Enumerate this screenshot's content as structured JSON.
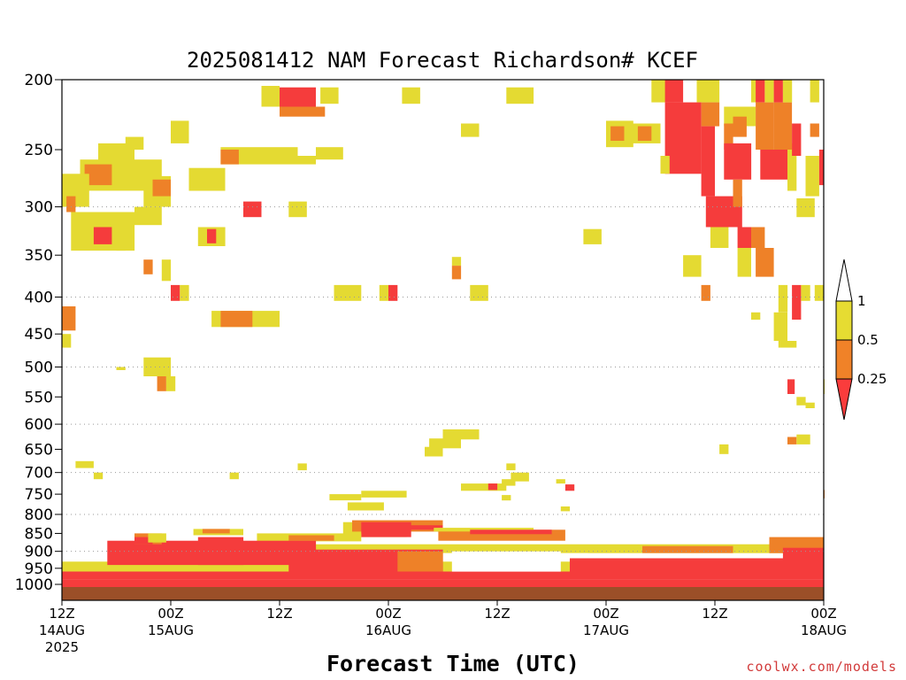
{
  "chart_data": {
    "type": "heatmap",
    "title": "2025081412 NAM Forecast Richardson# KCEF",
    "xlabel": "Forecast Time (UTC)",
    "ylabel": "",
    "y_scale": "log-pressure",
    "ylim": [
      1000,
      200
    ],
    "xlim_hours": [
      0,
      84
    ],
    "y_ticks": [
      200,
      250,
      300,
      350,
      400,
      450,
      500,
      550,
      600,
      650,
      700,
      750,
      800,
      850,
      900,
      950,
      1000
    ],
    "x_ticks": [
      {
        "hour": 0,
        "line1": "12Z",
        "line2": "14AUG",
        "line3": "2025"
      },
      {
        "hour": 12,
        "line1": "00Z",
        "line2": "15AUG",
        "line3": ""
      },
      {
        "hour": 24,
        "line1": "12Z",
        "line2": "",
        "line3": ""
      },
      {
        "hour": 36,
        "line1": "00Z",
        "line2": "16AUG",
        "line3": ""
      },
      {
        "hour": 48,
        "line1": "12Z",
        "line2": "",
        "line3": ""
      },
      {
        "hour": 60,
        "line1": "00Z",
        "line2": "17AUG",
        "line3": ""
      },
      {
        "hour": 72,
        "line1": "12Z",
        "line2": "",
        "line3": ""
      },
      {
        "hour": 84,
        "line1": "00Z",
        "line2": "18AUG",
        "line3": ""
      }
    ],
    "dotted_gridlines_at": [
      300,
      400,
      500,
      600,
      700,
      800,
      900
    ],
    "legend": {
      "placement": "right",
      "levels": [
        {
          "label": "1",
          "color": "#ffffff"
        },
        {
          "label": "0.5",
          "color": "#e6dc32"
        },
        {
          "label": "0.25",
          "color": "#f08228"
        },
        {
          "label": "",
          "color": "#fa3c3c"
        }
      ]
    },
    "categories_colors": {
      "lt_0.25": "#fa3c3c",
      "0.25_0.5": "#f08228",
      "0.5_1": "#e6dc32",
      "ground": "#a0522d"
    },
    "regions": [
      {
        "c": "r",
        "h0": 24.0,
        "h1": 28.0,
        "p0": 205,
        "p1": 218
      },
      {
        "c": "o",
        "h0": 24.0,
        "h1": 29.0,
        "p0": 218,
        "p1": 225
      },
      {
        "c": "y",
        "h0": 22.0,
        "h1": 24.0,
        "p0": 204,
        "p1": 218
      },
      {
        "c": "y",
        "h0": 28.5,
        "h1": 30.5,
        "p0": 205,
        "p1": 216
      },
      {
        "c": "y",
        "h0": 37.5,
        "h1": 39.5,
        "p0": 205,
        "p1": 216
      },
      {
        "c": "y",
        "h0": 49.0,
        "h1": 52.0,
        "p0": 205,
        "p1": 216
      },
      {
        "c": "y",
        "h0": 44.0,
        "h1": 46.0,
        "p0": 230,
        "p1": 240
      },
      {
        "c": "y",
        "h0": 12.0,
        "h1": 14.0,
        "p0": 228,
        "p1": 245
      },
      {
        "c": "y",
        "h0": 4.0,
        "h1": 8.0,
        "p0": 245,
        "p1": 262
      },
      {
        "c": "y",
        "h0": 7.0,
        "h1": 9.0,
        "p0": 240,
        "p1": 250
      },
      {
        "c": "y",
        "h0": 2.0,
        "h1": 11.0,
        "p0": 258,
        "p1": 285
      },
      {
        "c": "o",
        "h0": 2.5,
        "h1": 5.5,
        "p0": 262,
        "p1": 280
      },
      {
        "c": "y",
        "h0": 0.0,
        "h1": 3.0,
        "p0": 270,
        "p1": 300
      },
      {
        "c": "o",
        "h0": 0.5,
        "h1": 1.5,
        "p0": 290,
        "p1": 305
      },
      {
        "c": "y",
        "h0": 9.0,
        "h1": 12.0,
        "p0": 272,
        "p1": 300
      },
      {
        "c": "o",
        "h0": 10.0,
        "h1": 12.0,
        "p0": 275,
        "p1": 290
      },
      {
        "c": "y",
        "h0": 14.0,
        "h1": 18.0,
        "p0": 265,
        "p1": 285
      },
      {
        "c": "y",
        "h0": 17.5,
        "h1": 26.0,
        "p0": 248,
        "p1": 262
      },
      {
        "c": "o",
        "h0": 17.5,
        "h1": 19.5,
        "p0": 250,
        "p1": 262
      },
      {
        "c": "y",
        "h0": 26.0,
        "h1": 28.0,
        "p0": 255,
        "p1": 262
      },
      {
        "c": "y",
        "h0": 28.0,
        "h1": 31.0,
        "p0": 248,
        "p1": 258
      },
      {
        "c": "r",
        "h0": 20.0,
        "h1": 22.0,
        "p0": 295,
        "p1": 310
      },
      {
        "c": "y",
        "h0": 25.0,
        "h1": 27.0,
        "p0": 295,
        "p1": 310
      },
      {
        "c": "y",
        "h0": 8.0,
        "h1": 11.0,
        "p0": 300,
        "p1": 318
      },
      {
        "c": "y",
        "h0": 1.0,
        "h1": 8.0,
        "p0": 305,
        "p1": 345
      },
      {
        "c": "r",
        "h0": 3.5,
        "h1": 5.5,
        "p0": 320,
        "p1": 338
      },
      {
        "c": "y",
        "h0": 6.0,
        "h1": 7.0,
        "p0": 330,
        "p1": 345
      },
      {
        "c": "y",
        "h0": 15.0,
        "h1": 18.0,
        "p0": 320,
        "p1": 340
      },
      {
        "c": "r",
        "h0": 16.0,
        "h1": 17.0,
        "p0": 322,
        "p1": 337
      },
      {
        "c": "o",
        "h0": 9.0,
        "h1": 10.0,
        "p0": 355,
        "p1": 372
      },
      {
        "c": "y",
        "h0": 11.0,
        "h1": 12.0,
        "p0": 355,
        "p1": 380
      },
      {
        "c": "r",
        "h0": 12.0,
        "h1": 13.0,
        "p0": 385,
        "p1": 405
      },
      {
        "c": "y",
        "h0": 13.0,
        "h1": 14.0,
        "p0": 385,
        "p1": 405
      },
      {
        "c": "y",
        "h0": 16.5,
        "h1": 24.0,
        "p0": 418,
        "p1": 440
      },
      {
        "c": "o",
        "h0": 17.5,
        "h1": 21.0,
        "p0": 418,
        "p1": 440
      },
      {
        "c": "o",
        "h0": 0.0,
        "h1": 1.5,
        "p0": 412,
        "p1": 445
      },
      {
        "c": "y",
        "h0": 0.0,
        "h1": 1.0,
        "p0": 450,
        "p1": 470
      },
      {
        "c": "y",
        "h0": 9.0,
        "h1": 12.0,
        "p0": 485,
        "p1": 515
      },
      {
        "c": "o",
        "h0": 10.5,
        "h1": 11.5,
        "p0": 515,
        "p1": 540
      },
      {
        "c": "y",
        "h0": 11.5,
        "h1": 12.5,
        "p0": 515,
        "p1": 540
      },
      {
        "c": "y",
        "h0": 30.0,
        "h1": 33.0,
        "p0": 385,
        "p1": 405
      },
      {
        "c": "y",
        "h0": 35.0,
        "h1": 36.0,
        "p0": 385,
        "p1": 405
      },
      {
        "c": "r",
        "h0": 36.0,
        "h1": 37.0,
        "p0": 385,
        "p1": 405
      },
      {
        "c": "y",
        "h0": 45.0,
        "h1": 47.0,
        "p0": 385,
        "p1": 405
      },
      {
        "c": "y",
        "h0": 43.0,
        "h1": 44.0,
        "p0": 352,
        "p1": 362
      },
      {
        "c": "o",
        "h0": 43.0,
        "h1": 44.0,
        "p0": 362,
        "p1": 378
      },
      {
        "c": "y",
        "h0": 57.5,
        "h1": 59.5,
        "p0": 322,
        "p1": 338
      },
      {
        "c": "y",
        "h0": 60.0,
        "h1": 63.0,
        "p0": 228,
        "p1": 248
      },
      {
        "c": "o",
        "h0": 60.5,
        "h1": 62.5,
        "p0": 232,
        "p1": 243
      },
      {
        "c": "y",
        "h0": 62.0,
        "h1": 66.0,
        "p0": 230,
        "p1": 245
      },
      {
        "c": "o",
        "h0": 63.5,
        "h1": 65.0,
        "p0": 232,
        "p1": 243
      },
      {
        "c": "y",
        "h0": 65.0,
        "h1": 67.5,
        "p0": 200,
        "p1": 215
      },
      {
        "c": "r",
        "h0": 66.5,
        "h1": 68.5,
        "p0": 200,
        "p1": 215
      },
      {
        "c": "y",
        "h0": 70.0,
        "h1": 72.5,
        "p0": 200,
        "p1": 215
      },
      {
        "c": "r",
        "h0": 66.5,
        "h1": 70.5,
        "p0": 215,
        "p1": 270
      },
      {
        "c": "o",
        "h0": 70.5,
        "h1": 72.5,
        "p0": 215,
        "p1": 232
      },
      {
        "c": "r",
        "h0": 70.5,
        "h1": 72.0,
        "p0": 232,
        "p1": 290
      },
      {
        "c": "y",
        "h0": 66.0,
        "h1": 67.0,
        "p0": 255,
        "p1": 270
      },
      {
        "c": "r",
        "h0": 71.0,
        "h1": 75.0,
        "p0": 290,
        "p1": 320
      },
      {
        "c": "y",
        "h0": 71.5,
        "h1": 73.5,
        "p0": 320,
        "p1": 342
      },
      {
        "c": "y",
        "h0": 73.0,
        "h1": 76.5,
        "p0": 218,
        "p1": 232
      },
      {
        "c": "o",
        "h0": 73.0,
        "h1": 74.0,
        "p0": 230,
        "p1": 250
      },
      {
        "c": "r",
        "h0": 73.0,
        "h1": 76.0,
        "p0": 245,
        "p1": 275
      },
      {
        "c": "o",
        "h0": 74.0,
        "h1": 75.5,
        "p0": 225,
        "p1": 240
      },
      {
        "c": "y",
        "h0": 76.0,
        "h1": 77.0,
        "p0": 200,
        "p1": 215
      },
      {
        "c": "r",
        "h0": 76.5,
        "h1": 77.5,
        "p0": 200,
        "p1": 215
      },
      {
        "c": "y",
        "h0": 77.5,
        "h1": 78.5,
        "p0": 200,
        "p1": 215
      },
      {
        "c": "o",
        "h0": 76.5,
        "h1": 78.5,
        "p0": 215,
        "p1": 250
      },
      {
        "c": "r",
        "h0": 77.0,
        "h1": 80.0,
        "p0": 250,
        "p1": 275
      },
      {
        "c": "y",
        "h0": 80.0,
        "h1": 81.0,
        "p0": 245,
        "p1": 285
      },
      {
        "c": "o",
        "h0": 74.0,
        "h1": 75.0,
        "p0": 275,
        "p1": 300
      },
      {
        "c": "r",
        "h0": 74.5,
        "h1": 76.5,
        "p0": 320,
        "p1": 342
      },
      {
        "c": "o",
        "h0": 76.0,
        "h1": 77.5,
        "p0": 320,
        "p1": 342
      },
      {
        "c": "o",
        "h0": 76.5,
        "h1": 78.5,
        "p0": 342,
        "p1": 375
      },
      {
        "c": "y",
        "h0": 74.5,
        "h1": 76.0,
        "p0": 342,
        "p1": 375
      },
      {
        "c": "y",
        "h0": 68.5,
        "h1": 70.5,
        "p0": 350,
        "p1": 375
      },
      {
        "c": "o",
        "h0": 70.5,
        "h1": 71.5,
        "p0": 385,
        "p1": 405
      },
      {
        "c": "y",
        "h0": 79.0,
        "h1": 80.0,
        "p0": 385,
        "p1": 420
      },
      {
        "c": "y",
        "h0": 78.5,
        "h1": 80.0,
        "p0": 420,
        "p1": 460
      },
      {
        "c": "y",
        "h0": 79.0,
        "h1": 81.0,
        "p0": 460,
        "p1": 470
      },
      {
        "c": "r",
        "h0": 80.5,
        "h1": 81.5,
        "p0": 385,
        "p1": 430
      },
      {
        "c": "y",
        "h0": 81.5,
        "h1": 82.5,
        "p0": 385,
        "p1": 405
      },
      {
        "c": "y",
        "h0": 83.0,
        "h1": 84.0,
        "p0": 385,
        "p1": 405
      },
      {
        "c": "y",
        "h0": 82.0,
        "h1": 83.5,
        "p0": 255,
        "p1": 290
      },
      {
        "c": "r",
        "h0": 83.5,
        "h1": 84.0,
        "p0": 250,
        "p1": 280
      },
      {
        "c": "y",
        "h0": 81.0,
        "h1": 82.0,
        "p0": 292,
        "p1": 310
      },
      {
        "c": "y",
        "h0": 82.0,
        "h1": 83.0,
        "p0": 292,
        "p1": 310
      },
      {
        "c": "y",
        "h0": 82.5,
        "h1": 83.5,
        "p0": 200,
        "p1": 215
      },
      {
        "c": "o",
        "h0": 82.5,
        "h1": 83.5,
        "p0": 230,
        "p1": 240
      },
      {
        "c": "o",
        "h0": 78.5,
        "h1": 80.5,
        "p0": 215,
        "p1": 250
      },
      {
        "c": "r",
        "h0": 78.5,
        "h1": 79.5,
        "p0": 200,
        "p1": 215
      },
      {
        "c": "y",
        "h0": 79.5,
        "h1": 80.5,
        "p0": 200,
        "p1": 215
      },
      {
        "c": "r",
        "h0": 80.5,
        "h1": 81.5,
        "p0": 230,
        "p1": 255
      },
      {
        "c": "y",
        "h0": 76.0,
        "h1": 77.0,
        "p0": 420,
        "p1": 430
      },
      {
        "c": "y",
        "h0": 82.0,
        "h1": 83.0,
        "p0": 560,
        "p1": 570
      },
      {
        "c": "y",
        "h0": 81.0,
        "h1": 82.0,
        "p0": 550,
        "p1": 565
      },
      {
        "c": "r",
        "h0": 80.0,
        "h1": 80.8,
        "p0": 520,
        "p1": 545
      },
      {
        "c": "o",
        "h0": 80.0,
        "h1": 81.0,
        "p0": 625,
        "p1": 640
      },
      {
        "c": "y",
        "h0": 81.0,
        "h1": 82.5,
        "p0": 620,
        "p1": 640
      },
      {
        "c": "y",
        "h0": 84.0,
        "h1": 84.0,
        "p0": 520,
        "p1": 545
      },
      {
        "c": "y",
        "h0": 72.5,
        "h1": 73.5,
        "p0": 640,
        "p1": 660
      },
      {
        "c": "y",
        "h0": 42.0,
        "h1": 46.0,
        "p0": 610,
        "p1": 630
      },
      {
        "c": "y",
        "h0": 40.5,
        "h1": 44.0,
        "p0": 628,
        "p1": 648
      },
      {
        "c": "y",
        "h0": 40.0,
        "h1": 42.0,
        "p0": 645,
        "p1": 665
      },
      {
        "c": "y",
        "h0": 1.5,
        "h1": 3.5,
        "p0": 675,
        "p1": 690
      },
      {
        "c": "y",
        "h0": 3.5,
        "h1": 4.5,
        "p0": 700,
        "p1": 715
      },
      {
        "c": "y",
        "h0": 26.0,
        "h1": 27.0,
        "p0": 680,
        "p1": 695
      },
      {
        "c": "y",
        "h0": 18.5,
        "h1": 19.5,
        "p0": 700,
        "p1": 715
      },
      {
        "c": "y",
        "h0": 49.0,
        "h1": 50.0,
        "p0": 680,
        "p1": 695
      },
      {
        "c": "y",
        "h0": 49.5,
        "h1": 51.5,
        "p0": 700,
        "p1": 720
      },
      {
        "c": "y",
        "h0": 48.5,
        "h1": 50.0,
        "p0": 715,
        "p1": 730
      },
      {
        "c": "y",
        "h0": 44.0,
        "h1": 49.0,
        "p0": 725,
        "p1": 742
      },
      {
        "c": "r",
        "h0": 47.0,
        "h1": 48.0,
        "p0": 725,
        "p1": 740
      },
      {
        "c": "r",
        "h0": 55.5,
        "h1": 56.5,
        "p0": 727,
        "p1": 742
      },
      {
        "c": "y",
        "h0": 54.5,
        "h1": 55.5,
        "p0": 715,
        "p1": 725
      },
      {
        "c": "y",
        "h0": 29.5,
        "h1": 33.0,
        "p0": 750,
        "p1": 765
      },
      {
        "c": "y",
        "h0": 33.0,
        "h1": 38.0,
        "p0": 742,
        "p1": 758
      },
      {
        "c": "y",
        "h0": 48.5,
        "h1": 49.5,
        "p0": 752,
        "p1": 765
      },
      {
        "c": "y",
        "h0": 55.0,
        "h1": 56.0,
        "p0": 780,
        "p1": 792
      },
      {
        "c": "y",
        "h0": 31.5,
        "h1": 35.5,
        "p0": 770,
        "p1": 790
      },
      {
        "c": "y",
        "h0": 6.0,
        "h1": 7.0,
        "p0": 500,
        "p1": 505
      },
      {
        "c": "o",
        "h0": 84.0,
        "h1": 84.0,
        "p0": 740,
        "p1": 760
      }
    ],
    "bands": [
      {
        "c": "y",
        "h0": 0.0,
        "h1": 84.0,
        "p0": 930,
        "p1": 960
      },
      {
        "c": "y",
        "h0": 19.0,
        "h1": 84.0,
        "p0": 880,
        "p1": 905
      },
      {
        "c": "y",
        "h0": 31.0,
        "h1": 38.0,
        "p0": 820,
        "p1": 860
      },
      {
        "c": "o",
        "h0": 32.0,
        "h1": 42.0,
        "p0": 815,
        "p1": 845
      },
      {
        "c": "r",
        "h0": 33.0,
        "h1": 38.5,
        "p0": 820,
        "p1": 860
      },
      {
        "c": "r",
        "h0": 38.0,
        "h1": 42.0,
        "p0": 828,
        "p1": 840
      },
      {
        "c": "y",
        "h0": 14.5,
        "h1": 20.0,
        "p0": 838,
        "p1": 855
      },
      {
        "c": "o",
        "h0": 15.5,
        "h1": 18.5,
        "p0": 838,
        "p1": 850
      },
      {
        "c": "o",
        "h0": 41.5,
        "h1": 55.5,
        "p0": 840,
        "p1": 870
      },
      {
        "c": "y",
        "h0": 41.0,
        "h1": 52.0,
        "p0": 835,
        "p1": 845
      },
      {
        "c": "r",
        "h0": 45.0,
        "h1": 54.0,
        "p0": 840,
        "p1": 852
      },
      {
        "c": "y",
        "h0": 21.5,
        "h1": 33.0,
        "p0": 850,
        "p1": 872
      },
      {
        "c": "o",
        "h0": 25.0,
        "h1": 30.0,
        "p0": 855,
        "p1": 870
      },
      {
        "c": "y",
        "h0": 58.0,
        "h1": 84.0,
        "p0": 885,
        "p1": 905
      },
      {
        "c": "o",
        "h0": 64.0,
        "h1": 74.0,
        "p0": 885,
        "p1": 905
      },
      {
        "c": "o",
        "h0": 78.0,
        "h1": 84.0,
        "p0": 860,
        "p1": 905
      },
      {
        "c": "r",
        "h0": 79.5,
        "h1": 84.0,
        "p0": 890,
        "p1": 960
      },
      {
        "c": "r",
        "h0": 5.0,
        "h1": 28.0,
        "p0": 870,
        "p1": 940
      },
      {
        "c": "o",
        "h0": 8.0,
        "h1": 11.0,
        "p0": 850,
        "p1": 880
      },
      {
        "c": "r",
        "h0": 8.0,
        "h1": 10.0,
        "p0": 860,
        "p1": 880
      },
      {
        "c": "y",
        "h0": 9.5,
        "h1": 11.5,
        "p0": 850,
        "p1": 875
      },
      {
        "c": "r",
        "h0": 15.0,
        "h1": 20.0,
        "p0": 860,
        "p1": 940
      },
      {
        "c": "r",
        "h0": 25.0,
        "h1": 42.0,
        "p0": 895,
        "p1": 960
      },
      {
        "c": "o",
        "h0": 37.0,
        "h1": 42.0,
        "p0": 900,
        "p1": 960
      },
      {
        "c": "r",
        "h0": 56.0,
        "h1": 84.0,
        "p0": 920,
        "p1": 970
      },
      {
        "c": "r",
        "h0": 0.0,
        "h1": 84.0,
        "p0": 960,
        "p1": 985
      },
      {
        "c": "r",
        "h0": 42.0,
        "h1": 56.0,
        "p0": 960,
        "p1": 985
      },
      {
        "c": "w",
        "h0": 43.0,
        "h1": 55.0,
        "p0": 900,
        "p1": 960
      },
      {
        "c": "r",
        "h0": 0.0,
        "h1": 84.0,
        "p0": 985,
        "p1": 1010
      },
      {
        "c": "g",
        "h0": 0.0,
        "h1": 84.0,
        "p0": 1010,
        "p1": 1060
      }
    ]
  },
  "credit": "coolwx.com/models"
}
